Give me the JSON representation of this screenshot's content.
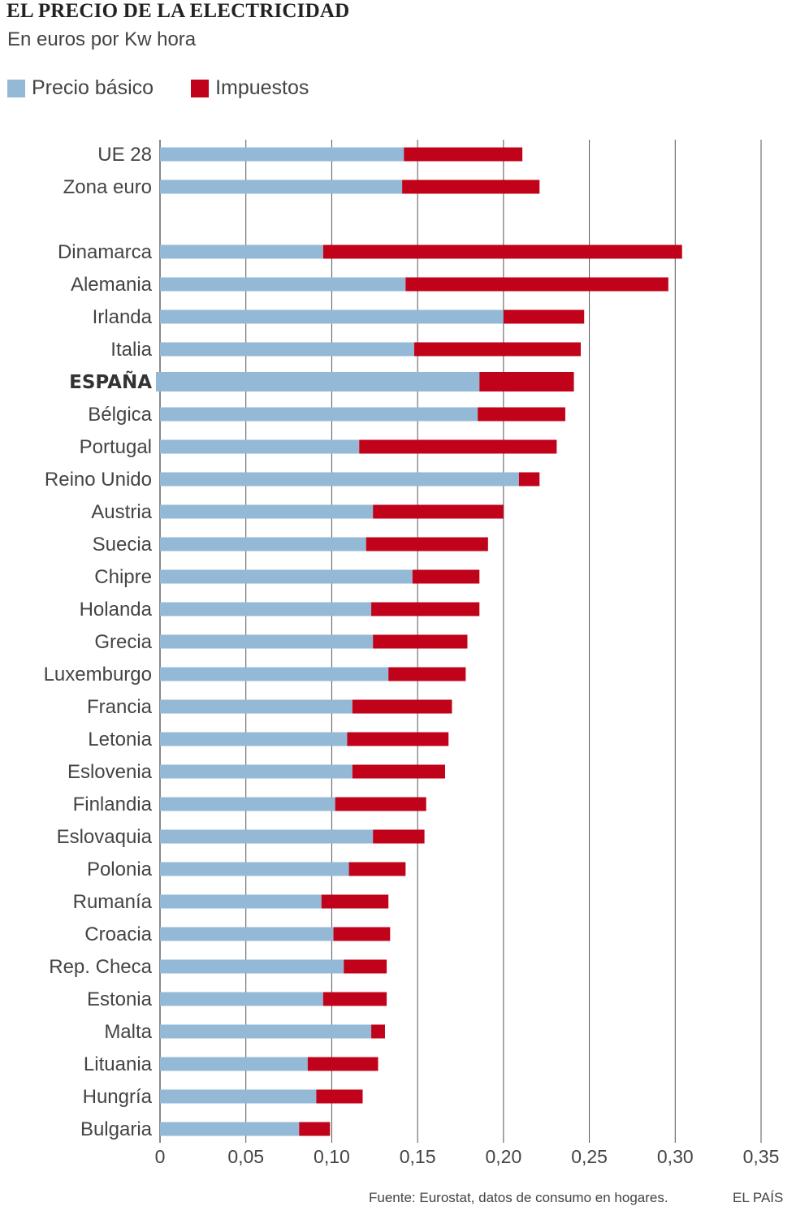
{
  "chart_data": {
    "type": "bar",
    "orientation": "horizontal",
    "stacked": true,
    "title": "EL PRECIO DE LA ELECTRICIDAD",
    "subtitle": "En euros por Kw hora",
    "xlim": [
      0,
      0.35
    ],
    "xticks": [
      "0",
      "0,05",
      "0,10",
      "0,15",
      "0,20",
      "0,25",
      "0,30",
      "0,35"
    ],
    "xtick_values": [
      0,
      0.05,
      0.1,
      0.15,
      0.2,
      0.25,
      0.3,
      0.35
    ],
    "grid": true,
    "highlight": "ESPAÑA",
    "colors": {
      "basic": "#93b9d6",
      "tax": "#c0031a",
      "grid": "#555555"
    },
    "legend": {
      "basic_label": "Precio básico",
      "tax_label": "Impuestos"
    },
    "group_break_after": 2,
    "categories": [
      "UE 28",
      "Zona euro",
      "Dinamarca",
      "Alemania",
      "Irlanda",
      "Italia",
      "ESPAÑA",
      "Bélgica",
      "Portugal",
      "Reino Unido",
      "Austria",
      "Suecia",
      "Chipre",
      "Holanda",
      "Grecia",
      "Luxemburgo",
      "Francia",
      "Letonia",
      "Eslovenia",
      "Finlandia",
      "Eslovaquia",
      "Polonia",
      "Rumanía",
      "Croacia",
      "Rep. Checa",
      "Estonia",
      "Malta",
      "Lituania",
      "Hungría",
      "Bulgaria"
    ],
    "series": [
      {
        "name": "Precio básico",
        "values": [
          0.142,
          0.141,
          0.095,
          0.143,
          0.2,
          0.148,
          0.186,
          0.185,
          0.116,
          0.209,
          0.124,
          0.12,
          0.147,
          0.123,
          0.124,
          0.133,
          0.112,
          0.109,
          0.112,
          0.102,
          0.124,
          0.11,
          0.094,
          0.101,
          0.107,
          0.095,
          0.123,
          0.086,
          0.091,
          0.081
        ]
      },
      {
        "name": "Impuestos",
        "values": [
          0.069,
          0.08,
          0.209,
          0.153,
          0.047,
          0.097,
          0.055,
          0.051,
          0.115,
          0.012,
          0.076,
          0.071,
          0.039,
          0.063,
          0.055,
          0.045,
          0.058,
          0.059,
          0.054,
          0.053,
          0.03,
          0.033,
          0.039,
          0.033,
          0.025,
          0.037,
          0.008,
          0.041,
          0.027,
          0.018
        ]
      }
    ]
  },
  "footer": {
    "source": "Fuente: Eurostat, datos de consumo en hogares.",
    "brand": "EL PAÍS"
  }
}
